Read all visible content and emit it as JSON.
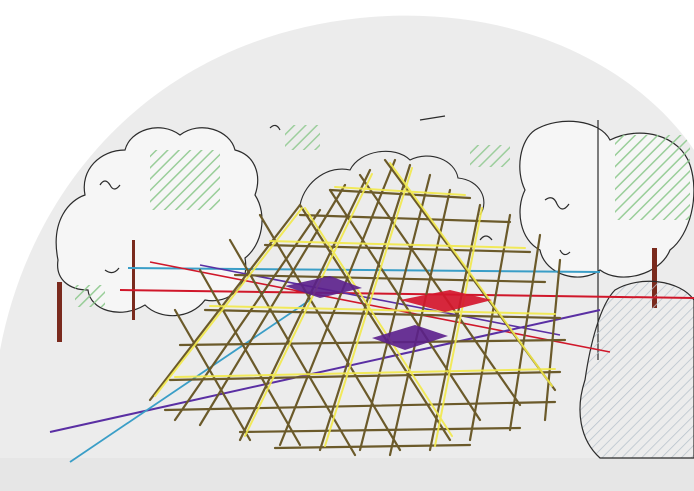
{
  "image": {
    "subject": "",
    "colors": {
      "page_background": "#ffffff",
      "dome_background": "#ececec",
      "ground": "#e6e6e6",
      "sketch_outline": "#2b2b2b",
      "foliage_hatch": "#8fc98f",
      "rock_hatch": "#9aa6b2",
      "bamboo_stroke": "#6b5a2a",
      "bamboo_highlight": "#f2e94a",
      "red_line": "#d0172a",
      "purple_line": "#5a2fa3",
      "teal_line": "#3a9ec7",
      "diamond_purple": "#5b1f8c",
      "diamond_red": "#d4162c",
      "trunk": "#7a2a1d"
    }
  }
}
